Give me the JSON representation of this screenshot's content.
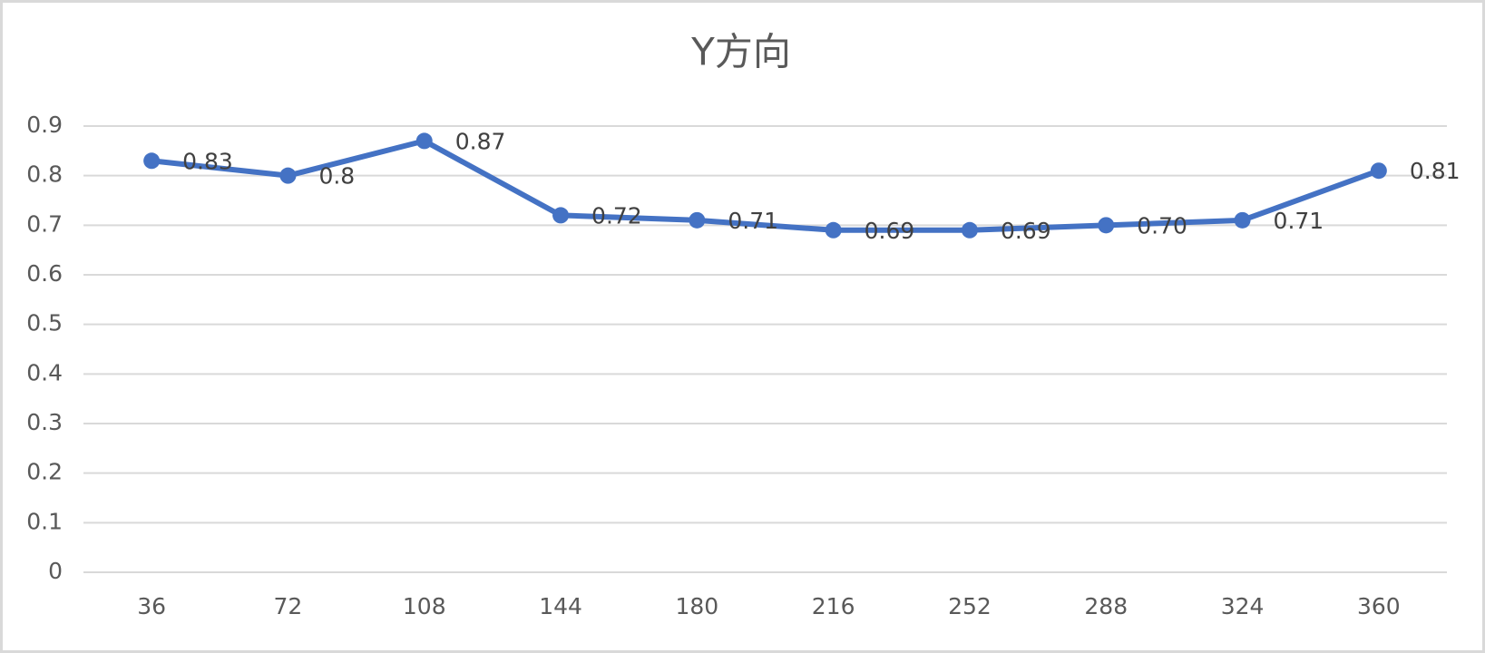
{
  "chart_data": {
    "type": "line",
    "title": "Y方向",
    "categories": [
      "36",
      "72",
      "108",
      "144",
      "180",
      "216",
      "252",
      "288",
      "324",
      "360"
    ],
    "values": [
      0.83,
      0.8,
      0.87,
      0.72,
      0.71,
      0.69,
      0.69,
      0.7,
      0.71,
      0.81
    ],
    "value_labels": [
      "0.83",
      "0.8",
      "0.87",
      "0.72",
      "0.71",
      "0.69",
      "0.69",
      "0.70",
      "0.71",
      "0.81"
    ],
    "color": "#4472c4",
    "ylim": [
      0,
      0.9
    ],
    "yticks": [
      0,
      0.1,
      0.2,
      0.3,
      0.4,
      0.5,
      0.6,
      0.7,
      0.8,
      0.9
    ],
    "grid": true
  }
}
